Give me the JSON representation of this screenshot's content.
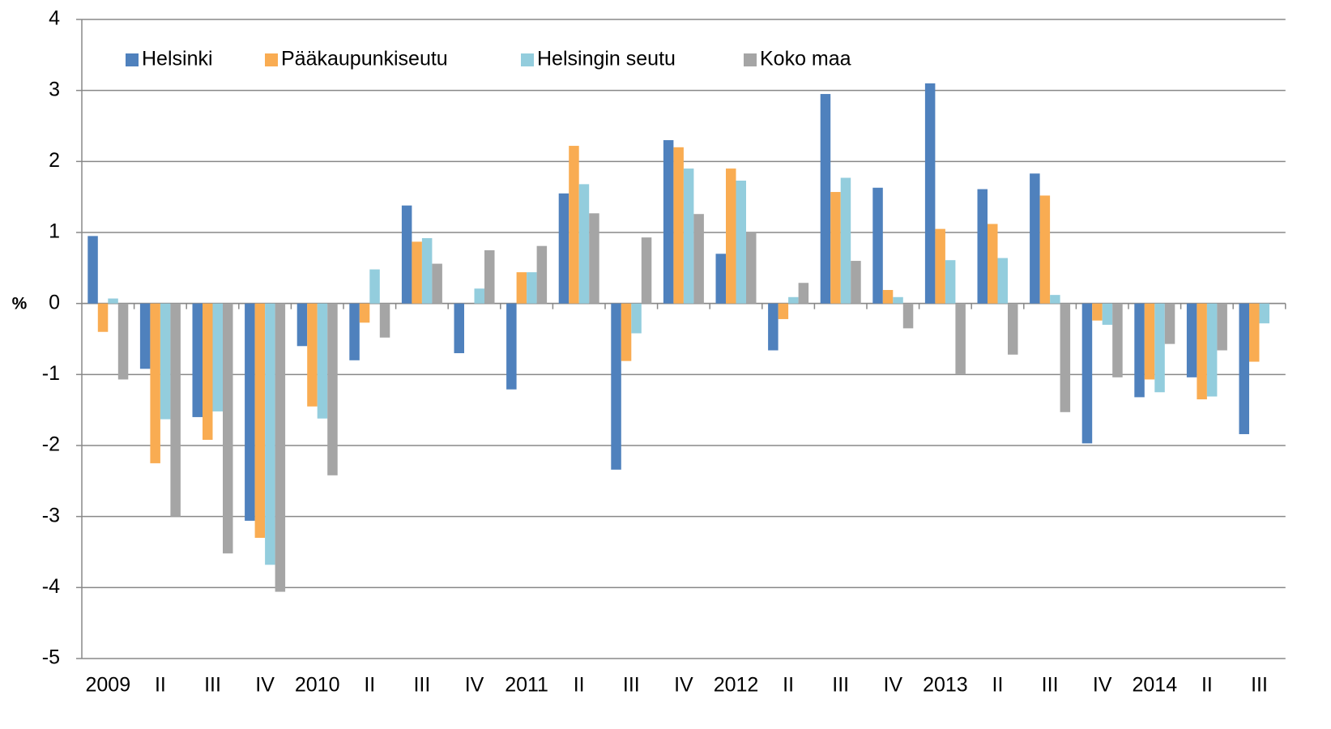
{
  "chart_data": {
    "type": "bar",
    "y_label": "%",
    "categories": [
      "2009",
      "II",
      "III",
      "IV",
      "2010",
      "II",
      "III",
      "IV",
      "2011",
      "II",
      "III",
      "IV",
      "2012",
      "II",
      "III",
      "IV",
      "2013",
      "II",
      "III",
      "IV",
      "2014",
      "II",
      "III"
    ],
    "series": [
      {
        "name": "Helsinki",
        "color": "#4f81bd",
        "values": [
          0.95,
          -0.92,
          -1.6,
          -3.06,
          -0.6,
          -0.8,
          1.38,
          -0.7,
          -1.21,
          1.55,
          -2.34,
          2.3,
          0.7,
          -0.66,
          2.95,
          1.63,
          3.1,
          1.61,
          1.83,
          -1.97,
          -1.32,
          -1.04,
          -1.84
        ]
      },
      {
        "name": "Pääkaupunkiseutu",
        "color": "#f9ac52",
        "values": [
          -0.4,
          -2.25,
          -1.92,
          -3.3,
          -1.45,
          -0.27,
          0.87,
          0,
          0.44,
          2.22,
          -0.81,
          2.2,
          1.9,
          -0.22,
          1.57,
          0.19,
          1.05,
          1.12,
          1.52,
          -0.24,
          -1.07,
          -1.35,
          -0.82
        ]
      },
      {
        "name": "Helsingin seutu",
        "color": "#93cddd",
        "values": [
          0.07,
          -1.63,
          -1.52,
          -3.68,
          -1.62,
          0.48,
          0.92,
          0.21,
          0.44,
          1.68,
          -0.42,
          1.9,
          1.73,
          0.09,
          1.77,
          0.09,
          0.61,
          0.64,
          0.12,
          -0.3,
          -1.25,
          -1.31,
          -0.28
        ]
      },
      {
        "name": "Koko maa",
        "color": "#a5a5a5",
        "values": [
          -1.07,
          -3.0,
          -3.52,
          -4.06,
          -2.42,
          -0.48,
          0.56,
          0.75,
          0.81,
          1.27,
          0.93,
          1.26,
          1.0,
          0.29,
          0.6,
          -0.35,
          -1.0,
          -0.72,
          -1.53,
          -1.04,
          -0.57,
          -0.66,
          null
        ]
      }
    ],
    "ylim": [
      -5,
      4
    ],
    "yticks": [
      -5,
      -4,
      -3,
      -2,
      -1,
      0,
      1,
      2,
      3,
      4
    ],
    "grid": true
  }
}
